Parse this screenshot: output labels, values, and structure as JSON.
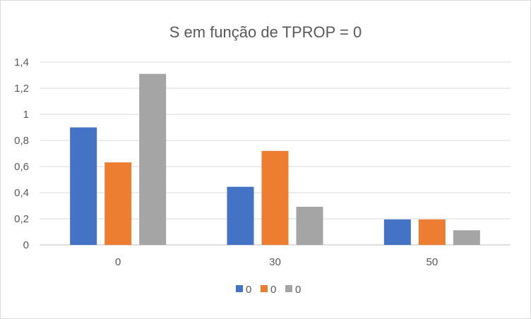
{
  "chart_data": {
    "type": "bar",
    "title": "S em função de TPROP = 0",
    "xlabel": "",
    "ylabel": "",
    "categories": [
      "0",
      "30",
      "50"
    ],
    "series": [
      {
        "name": "0",
        "values": [
          0.9,
          0.445,
          0.195
        ],
        "color": "#4472c4"
      },
      {
        "name": "0",
        "values": [
          0.632,
          0.72,
          0.195
        ],
        "color": "#ed7d31"
      },
      {
        "name": "0",
        "values": [
          1.31,
          0.292,
          0.112
        ],
        "color": "#a5a5a5"
      }
    ],
    "ylim": [
      0,
      1.4
    ],
    "yticks": [
      "0",
      "0,2",
      "0,4",
      "0,6",
      "0,8",
      "1",
      "1,2",
      "1,4"
    ],
    "grid": true,
    "legend_position": "bottom",
    "gridline_color": "#d9d9d9",
    "axis_line_color": "#bfbfbf"
  }
}
